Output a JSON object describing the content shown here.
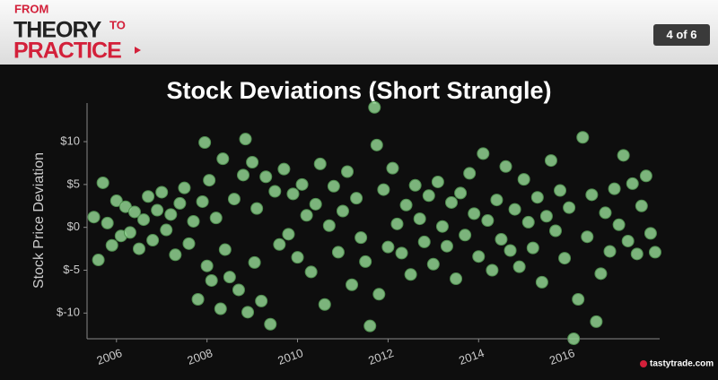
{
  "header": {
    "brand": [
      "FROM",
      "THEORY",
      "TO",
      "PRACTICE"
    ],
    "page_indicator": "4 of 6"
  },
  "footer": {
    "logo": "tastytrade.com"
  },
  "chart_data": {
    "type": "scatter",
    "title": "Stock Deviations (Short Strangle)",
    "y_label": "Stock Price Deviation",
    "xlim": [
      2005.35,
      2018.0
    ],
    "xticks": [
      2006,
      2008,
      2010,
      2012,
      2014,
      2016
    ],
    "ylim": [
      -13,
      14.5
    ],
    "yticks": [
      {
        "value": 10,
        "label": "$10"
      },
      {
        "value": 5,
        "label": "$5"
      },
      {
        "value": 0,
        "label": "$0"
      },
      {
        "value": -5,
        "label": "$-5"
      },
      {
        "value": -10,
        "label": "$-10"
      }
    ],
    "grid": false,
    "color": "#8fd18f",
    "x": [
      2005.5,
      2005.6,
      2005.7,
      2005.8,
      2005.9,
      2006.0,
      2006.1,
      2006.2,
      2006.3,
      2006.4,
      2006.5,
      2006.6,
      2006.7,
      2006.8,
      2006.9,
      2007.0,
      2007.1,
      2007.2,
      2007.3,
      2007.4,
      2007.5,
      2007.6,
      2007.7,
      2007.8,
      2007.9,
      2007.95,
      2008.0,
      2008.05,
      2008.1,
      2008.2,
      2008.3,
      2008.35,
      2008.4,
      2008.5,
      2008.6,
      2008.7,
      2008.8,
      2008.85,
      2008.9,
      2009.0,
      2009.05,
      2009.1,
      2009.2,
      2009.3,
      2009.4,
      2009.5,
      2009.6,
      2009.7,
      2009.8,
      2009.9,
      2010.0,
      2010.1,
      2010.2,
      2010.3,
      2010.4,
      2010.5,
      2010.6,
      2010.7,
      2010.8,
      2010.9,
      2011.0,
      2011.1,
      2011.2,
      2011.3,
      2011.4,
      2011.5,
      2011.6,
      2011.7,
      2011.75,
      2011.8,
      2011.9,
      2012.0,
      2012.1,
      2012.2,
      2012.3,
      2012.4,
      2012.5,
      2012.6,
      2012.7,
      2012.8,
      2012.9,
      2013.0,
      2013.1,
      2013.2,
      2013.3,
      2013.4,
      2013.5,
      2013.6,
      2013.7,
      2013.8,
      2013.9,
      2014.0,
      2014.1,
      2014.2,
      2014.3,
      2014.4,
      2014.5,
      2014.6,
      2014.7,
      2014.8,
      2014.9,
      2015.0,
      2015.1,
      2015.2,
      2015.3,
      2015.4,
      2015.5,
      2015.6,
      2015.7,
      2015.8,
      2015.9,
      2016.0,
      2016.1,
      2016.2,
      2016.3,
      2016.4,
      2016.5,
      2016.6,
      2016.7,
      2016.8,
      2016.9,
      2017.0,
      2017.1,
      2017.2,
      2017.3,
      2017.4,
      2017.5,
      2017.6,
      2017.7,
      2017.8,
      2017.9
    ],
    "y": [
      1.2,
      -3.8,
      5.2,
      0.5,
      -2.1,
      3.1,
      -1.0,
      2.4,
      -0.6,
      1.8,
      -2.5,
      0.9,
      3.6,
      -1.5,
      2.0,
      4.1,
      -0.3,
      1.5,
      -3.2,
      2.8,
      4.6,
      -1.9,
      0.7,
      -8.4,
      3.0,
      9.9,
      -4.5,
      5.5,
      -6.2,
      1.1,
      -9.5,
      8.0,
      -2.6,
      -5.8,
      3.3,
      -7.3,
      6.1,
      10.3,
      -9.9,
      7.6,
      -4.1,
      2.2,
      -8.6,
      5.9,
      -11.3,
      4.2,
      -2.0,
      6.8,
      -0.8,
      3.9,
      -3.5,
      5.0,
      1.4,
      -5.2,
      2.7,
      7.4,
      -9.0,
      0.2,
      4.8,
      -2.9,
      1.9,
      6.5,
      -6.7,
      3.4,
      -1.2,
      -4.0,
      -11.5,
      14.0,
      9.6,
      -7.8,
      4.4,
      -2.3,
      6.9,
      0.4,
      -3.0,
      2.6,
      -5.5,
      4.9,
      1.0,
      -1.7,
      3.7,
      -4.3,
      5.3,
      0.1,
      -2.2,
      2.9,
      -6.0,
      4.0,
      -0.9,
      6.3,
      1.6,
      -3.4,
      8.6,
      0.8,
      -5.0,
      3.2,
      -1.4,
      7.1,
      -2.7,
      2.1,
      -4.6,
      5.6,
      0.6,
      -2.4,
      3.5,
      -6.4,
      1.3,
      7.8,
      -0.4,
      4.3,
      -3.6,
      2.3,
      -13.0,
      -8.4,
      10.5,
      -1.1,
      3.8,
      -11.0,
      -5.4,
      1.7,
      -2.8,
      4.5,
      0.3,
      8.4,
      -1.6,
      5.1,
      -3.1,
      2.5,
      6.0,
      -0.7,
      -2.9
    ]
  }
}
